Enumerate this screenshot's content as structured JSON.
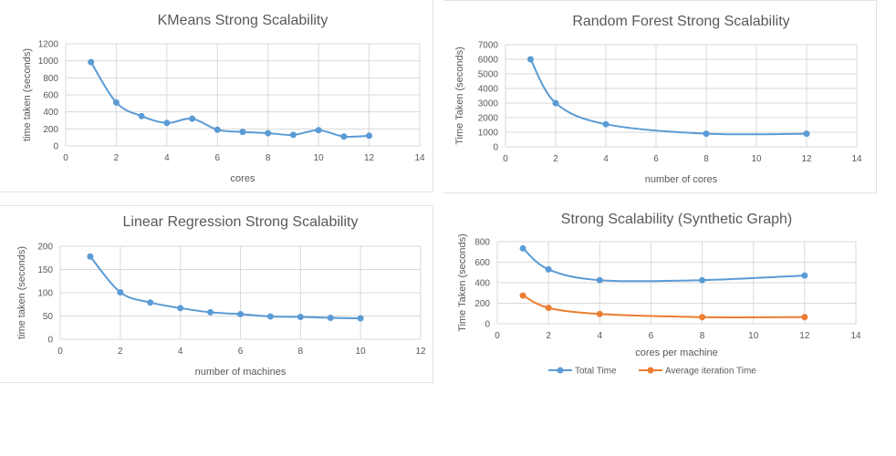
{
  "chart_data": [
    {
      "id": "km",
      "type": "line",
      "title": "KMeans Strong Scalability",
      "xlabel": "cores",
      "ylabel": "time taken (seconds)",
      "xlim": [
        0,
        14
      ],
      "ylim": [
        0,
        1200
      ],
      "xticks": [
        0,
        2,
        4,
        6,
        8,
        10,
        12,
        14
      ],
      "yticks": [
        0,
        200,
        400,
        600,
        800,
        1000,
        1200
      ],
      "grid": true,
      "series": [
        {
          "color": "#5b9bd5",
          "x": [
            1,
            2,
            3,
            4,
            5,
            6,
            7,
            8,
            9,
            10,
            11,
            12
          ],
          "y": [
            985,
            510,
            350,
            270,
            320,
            190,
            165,
            150,
            130,
            185,
            110,
            120
          ]
        }
      ]
    },
    {
      "id": "rf",
      "type": "line",
      "title": "Random Forest Strong Scalability",
      "xlabel": "number of cores",
      "ylabel": "Time Taken (seconds)",
      "xlim": [
        0,
        14
      ],
      "ylim": [
        0,
        7000
      ],
      "xticks": [
        0,
        2,
        4,
        6,
        8,
        10,
        12,
        14
      ],
      "yticks": [
        0,
        1000,
        2000,
        3000,
        4000,
        5000,
        6000,
        7000
      ],
      "grid": true,
      "series": [
        {
          "color": "#5b9bd5",
          "x": [
            1,
            2,
            4,
            8,
            12
          ],
          "y": [
            6000,
            3000,
            1550,
            900,
            900
          ]
        }
      ]
    },
    {
      "id": "lr",
      "type": "line",
      "title": "Linear Regression Strong Scalability",
      "xlabel": "number of machines",
      "ylabel": "time taken (seconds)",
      "xlim": [
        0,
        12
      ],
      "ylim": [
        0,
        200
      ],
      "xticks": [
        0,
        2,
        4,
        6,
        8,
        10,
        12
      ],
      "yticks": [
        0,
        50,
        100,
        150,
        200
      ],
      "grid": true,
      "series": [
        {
          "color": "#5b9bd5",
          "x": [
            1,
            2,
            3,
            4,
            5,
            6,
            7,
            8,
            9,
            10
          ],
          "y": [
            178,
            101,
            79,
            67,
            58,
            54,
            49,
            48,
            46,
            45
          ]
        }
      ]
    },
    {
      "id": "sg",
      "type": "line",
      "title": "Strong Scalability (Synthetic Graph)",
      "xlabel": "cores per machine",
      "ylabel": "Time Taken (seconds)",
      "xlim": [
        0,
        14
      ],
      "ylim": [
        0,
        800
      ],
      "xticks": [
        0,
        2,
        4,
        6,
        8,
        10,
        12,
        14
      ],
      "yticks": [
        0,
        200,
        400,
        600,
        800
      ],
      "grid": true,
      "legend": "bottom",
      "series": [
        {
          "name": "Total Time",
          "color": "#5b9bd5",
          "x": [
            1,
            2,
            4,
            8,
            12
          ],
          "y": [
            735,
            530,
            425,
            425,
            470
          ]
        },
        {
          "name": "Average iteration Time",
          "color": "#ed7d31",
          "x": [
            1,
            2,
            4,
            8,
            12
          ],
          "y": [
            275,
            155,
            95,
            65,
            65
          ]
        }
      ]
    }
  ]
}
